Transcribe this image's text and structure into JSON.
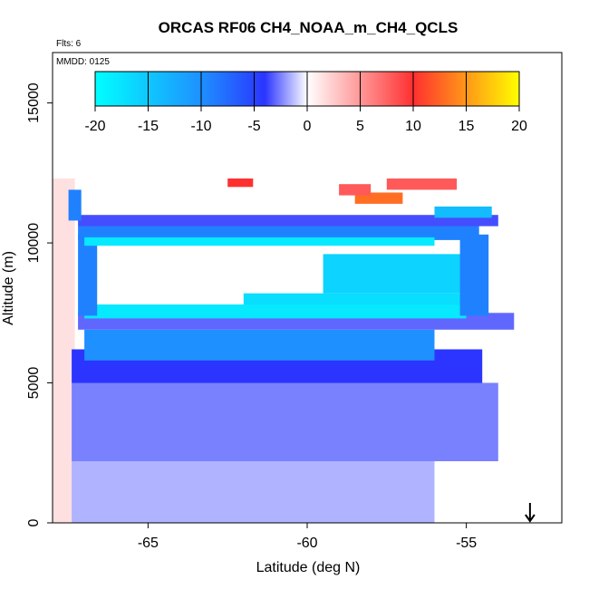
{
  "chart_data": {
    "type": "heatmap",
    "title": "ORCAS RF06 CH4_NOAA_m_CH4_QCLS",
    "subtitle": "Flts: 6",
    "annotation": "MMDD: 0125",
    "xlabel": "Latitude (deg N)",
    "ylabel": "Altitude (m)",
    "xlim": [
      -68.0,
      -52.0
    ],
    "ylim": [
      0,
      16800
    ],
    "x_ticks": [
      "-65",
      "-60",
      "-55"
    ],
    "y_ticks": [
      "0",
      "5000",
      "10000",
      "15000"
    ],
    "colorbar": {
      "range": [
        -20,
        20
      ],
      "ticks": [
        "-20",
        "-15",
        "-10",
        "-5",
        "0",
        "5",
        "10",
        "15",
        "20"
      ],
      "colors": [
        "#00ffff",
        "#1e90ff",
        "#2b35ff",
        "#ffffff",
        "#ff3030",
        "#ffff00"
      ]
    },
    "grid": false,
    "marker": {
      "symbol": "arrow-down",
      "x": -53.0
    },
    "regions": [
      {
        "x": [
          -68.0,
          -67.3
        ],
        "y": [
          0,
          12300
        ],
        "value": 1.5
      },
      {
        "x": [
          -67.4,
          -56.0
        ],
        "y": [
          0,
          2200
        ],
        "value": -1.5
      },
      {
        "x": [
          -67.4,
          -54.0
        ],
        "y": [
          2200,
          5000
        ],
        "value": -2.5
      },
      {
        "x": [
          -67.4,
          -54.5
        ],
        "y": [
          5000,
          6200
        ],
        "value": -4.0
      },
      {
        "x": [
          -67.0,
          -56.0
        ],
        "y": [
          5800,
          6900
        ],
        "value": -10.0
      },
      {
        "x": [
          -67.2,
          -53.5
        ],
        "y": [
          6900,
          7500
        ],
        "value": -3.0
      },
      {
        "x": [
          -67.0,
          -55.0
        ],
        "y": [
          7300,
          7800
        ],
        "value": -18.0
      },
      {
        "x": [
          -62.0,
          -55.0
        ],
        "y": [
          7800,
          8200
        ],
        "value": -17.0
      },
      {
        "x": [
          -59.5,
          -55.0
        ],
        "y": [
          8200,
          9600
        ],
        "value": -16.0
      },
      {
        "x": [
          -55.2,
          -54.3
        ],
        "y": [
          7400,
          10300
        ],
        "value": -9.0
      },
      {
        "x": [
          -67.2,
          -66.6
        ],
        "y": [
          7400,
          10300
        ],
        "value": -9.0
      },
      {
        "x": [
          -67.2,
          -54.6
        ],
        "y": [
          10100,
          10600
        ],
        "value": -9.0
      },
      {
        "x": [
          -67.0,
          -56.0
        ],
        "y": [
          9900,
          10200
        ],
        "value": -18.0
      },
      {
        "x": [
          -67.2,
          -54.0
        ],
        "y": [
          10600,
          11000
        ],
        "value": -3.5
      },
      {
        "x": [
          -67.5,
          -67.1
        ],
        "y": [
          10800,
          11900
        ],
        "value": -9.0
      },
      {
        "x": [
          -56.0,
          -54.2
        ],
        "y": [
          10900,
          11300
        ],
        "value": -14.0
      },
      {
        "x": [
          -58.5,
          -57.0
        ],
        "y": [
          11400,
          11800
        ],
        "value": 13.0
      },
      {
        "x": [
          -59.0,
          -58.0
        ],
        "y": [
          11700,
          12100
        ],
        "value": 8.0
      },
      {
        "x": [
          -57.5,
          -55.3
        ],
        "y": [
          11900,
          12300
        ],
        "value": 8.0
      },
      {
        "x": [
          -62.5,
          -61.7
        ],
        "y": [
          12000,
          12300
        ],
        "value": 10.0
      }
    ]
  }
}
